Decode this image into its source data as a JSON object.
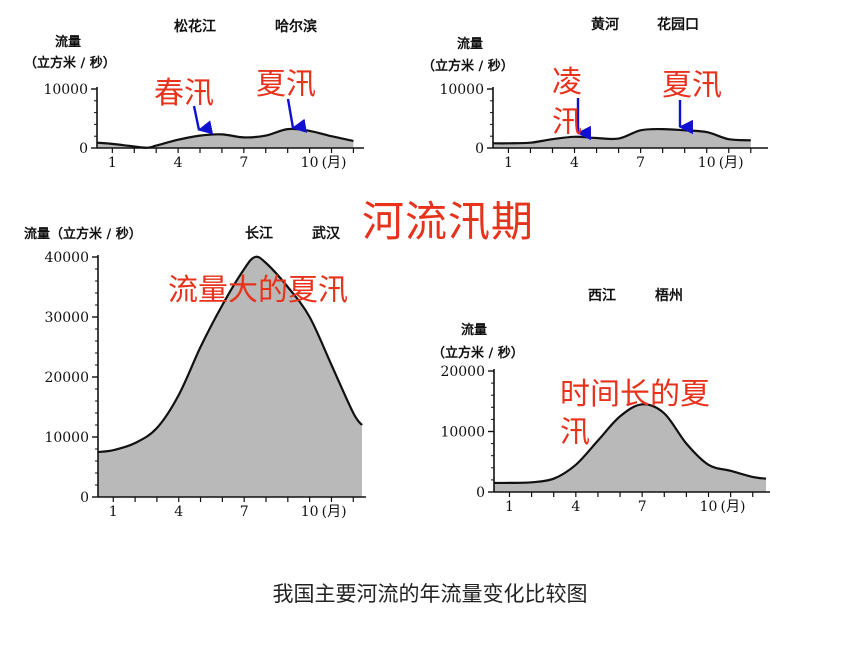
{
  "page": {
    "center_title": "河流汛期",
    "caption": "我国主要河流的年流量变化比较图"
  },
  "colors": {
    "annotation": "#e8321c",
    "arrow": "#1010d0",
    "fill": "#b9b9b9",
    "line": "#111111"
  },
  "chart_data": [
    {
      "type": "area",
      "river": "松花江",
      "station": "哈尔滨",
      "ylabel_line1": "流量",
      "ylabel_line2": "（立方米 / 秒）",
      "ylim": [
        0,
        10000
      ],
      "yticks": [
        0,
        10000
      ],
      "xlim": [
        0.3,
        12.3
      ],
      "xticks": [
        1,
        4,
        7,
        10
      ],
      "month_unit": "(月)",
      "x": [
        0.3,
        1,
        2,
        2.6,
        3,
        4,
        5,
        6,
        7,
        8,
        9,
        10,
        11,
        12
      ],
      "y": [
        900,
        700,
        250,
        50,
        400,
        1400,
        2100,
        2300,
        1800,
        2100,
        3200,
        2900,
        2000,
        1200
      ],
      "annotations": [
        {
          "text": "春汛",
          "x": 4.7,
          "y": 1800
        },
        {
          "text": "夏汛",
          "x": 9.2,
          "y": 2700
        }
      ]
    },
    {
      "type": "area",
      "river": "黄河",
      "station": "花园口",
      "ylabel_line1": "流量",
      "ylabel_line2": "（立方米 / 秒）",
      "ylim": [
        0,
        10000
      ],
      "yticks": [
        0,
        10000
      ],
      "xlim": [
        0.3,
        12.6
      ],
      "xticks": [
        1,
        4,
        7,
        10
      ],
      "month_unit": "(月)",
      "x": [
        0.3,
        1,
        2,
        3,
        4,
        5,
        6,
        7,
        8,
        9,
        10,
        11,
        12
      ],
      "y": [
        800,
        800,
        900,
        1500,
        1900,
        1700,
        1600,
        3000,
        3200,
        3000,
        2700,
        1500,
        1300
      ],
      "annotations": [
        {
          "text": "凌汛",
          "x": 4.0,
          "y": 1800
        },
        {
          "text": "夏汛",
          "x": 9.0,
          "y": 3100
        }
      ]
    },
    {
      "type": "area",
      "river": "长江",
      "station": "武汉",
      "ylabel": "流量（立方米 / 秒）",
      "ylim": [
        0,
        40000
      ],
      "yticks": [
        0,
        10000,
        20000,
        30000,
        40000
      ],
      "xlim": [
        0.3,
        12.4
      ],
      "xticks": [
        1,
        4,
        7,
        10
      ],
      "month_unit": "(月)",
      "x": [
        0.3,
        1,
        2,
        3,
        4,
        5,
        6,
        7,
        7.5,
        8,
        9,
        10,
        11,
        12,
        12.4
      ],
      "y": [
        7500,
        7800,
        9000,
        11500,
        17000,
        25000,
        32000,
        38000,
        40000,
        39000,
        35000,
        30000,
        22000,
        14000,
        12000
      ],
      "annotations": [
        {
          "text": "流量大的夏汛"
        }
      ]
    },
    {
      "type": "area",
      "river": "西江",
      "station": "梧州",
      "ylabel_line1": "流量",
      "ylabel_line2": "（立方米 / 秒）",
      "ylim": [
        0,
        20000
      ],
      "yticks": [
        0,
        10000,
        20000
      ],
      "xlim": [
        0.3,
        12.6
      ],
      "xticks": [
        1,
        4,
        7,
        10
      ],
      "month_unit": "(月)",
      "x": [
        0.3,
        1,
        2,
        3,
        4,
        5,
        6,
        7,
        8,
        9,
        10,
        11,
        12,
        12.6
      ],
      "y": [
        1500,
        1500,
        1600,
        2200,
        4500,
        8500,
        12500,
        14500,
        13000,
        8000,
        4500,
        3500,
        2500,
        2200
      ],
      "annotations": [
        {
          "text_line1": "时间长的夏",
          "text_line2": "汛"
        }
      ]
    }
  ]
}
